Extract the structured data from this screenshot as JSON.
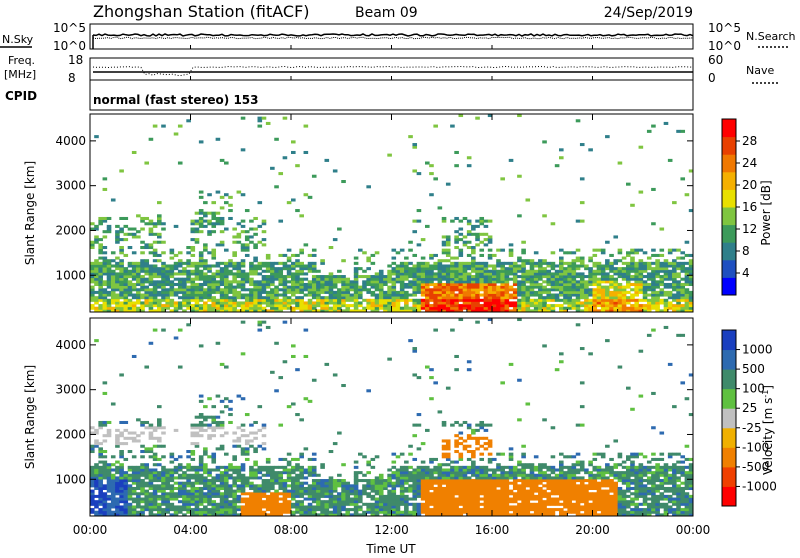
{
  "header": {
    "title": "Zhongshan Station (fitACF)",
    "beam": "Beam 09",
    "date": "24/Sep/2019"
  },
  "noise_panel": {
    "left_label": "N.Sky",
    "right_label": "N.Search",
    "left_ticks": [
      "10^5",
      "10^0"
    ],
    "right_ticks": [
      "10^5",
      "10^0"
    ]
  },
  "freq_panel": {
    "left_label_1": "Freq.",
    "left_label_2": "[MHz]",
    "right_label": "Nave",
    "left_ticks": [
      "18",
      "8"
    ],
    "right_ticks": [
      "60",
      "0"
    ]
  },
  "cpid": {
    "label": "CPID",
    "text": "normal (fast stereo) 153"
  },
  "x_axis": {
    "label": "Time UT",
    "ticks": [
      "00:00",
      "04:00",
      "08:00",
      "12:00",
      "16:00",
      "20:00",
      "00:00"
    ]
  },
  "power_panel": {
    "ylabel": "Slant Range [km]",
    "yticks": [
      "1000",
      "2000",
      "3000",
      "4000"
    ],
    "colorbar_label": "Power [dB]",
    "colorbar_ticks": [
      "4",
      "8",
      "12",
      "16",
      "20",
      "24",
      "28"
    ],
    "colorbar_colors": [
      "#0000ff",
      "#1e4fc0",
      "#2f7f8a",
      "#3c9a5a",
      "#7fc540",
      "#e8e000",
      "#f5b000",
      "#f07800",
      "#e84000",
      "#ff0000"
    ]
  },
  "velocity_panel": {
    "ylabel": "Slant Range [km]",
    "yticks": [
      "1000",
      "2000",
      "3000",
      "4000"
    ],
    "colorbar_label": "Velocity [m s^-1]",
    "colorbar_ticks": [
      "1000",
      "500",
      "100",
      "25",
      "-25",
      "-100",
      "-500",
      "-1000"
    ],
    "colorbar_colors": [
      "#1a3fbf",
      "#2d6ab0",
      "#3f8a6a",
      "#5fc040",
      "#c0c0c0",
      "#f0b000",
      "#f08000",
      "#f04000",
      "#ff0000"
    ]
  },
  "chart_data": {
    "type": "heatmap",
    "x": [
      "00:00",
      "04:00",
      "08:00",
      "12:00",
      "16:00",
      "20:00",
      "00:00"
    ],
    "xlabel": "Time UT",
    "ylabel": "Slant Range [km]",
    "ylim": [
      180,
      4600
    ],
    "power_range": [
      0,
      30
    ],
    "velocity_range": [
      -1000,
      1000
    ],
    "n_time_bins": 144,
    "n_range_bins": 75
  }
}
